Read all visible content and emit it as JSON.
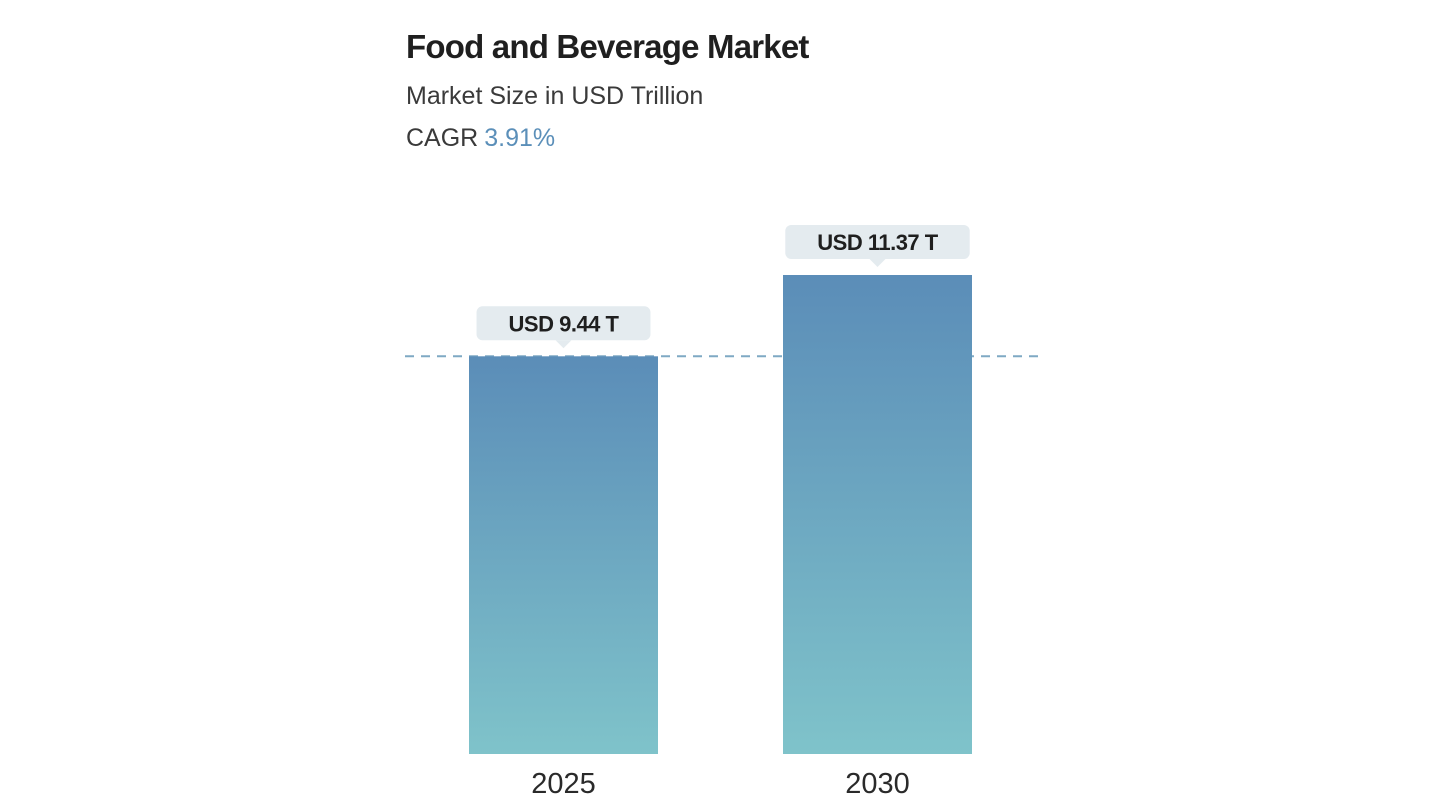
{
  "header": {
    "title": "Food and Beverage Market",
    "subtitle": "Market Size in USD Trillion",
    "cagr_label": "CAGR",
    "cagr_value": "3.91%"
  },
  "colors": {
    "bar_top": "#5b8db8",
    "bar_bottom": "#7fc3ca",
    "callout_bg": "#e4ebef",
    "reference_line": "#7fa9c4",
    "accent": "#5b8fb9"
  },
  "chart_data": {
    "type": "bar",
    "title": "Food and Beverage Market",
    "subtitle": "Market Size in USD Trillion",
    "categories": [
      "2025",
      "2030"
    ],
    "values": [
      9.44,
      11.37
    ],
    "data_labels": [
      "USD 9.44 T",
      "USD 11.37 T"
    ],
    "units": "USD Trillion",
    "reference_line": {
      "value": 9.44,
      "style": "dashed"
    },
    "ylim": [
      0,
      11.37
    ],
    "grid": false,
    "legend": "none",
    "xlabel": "",
    "ylabel": ""
  }
}
